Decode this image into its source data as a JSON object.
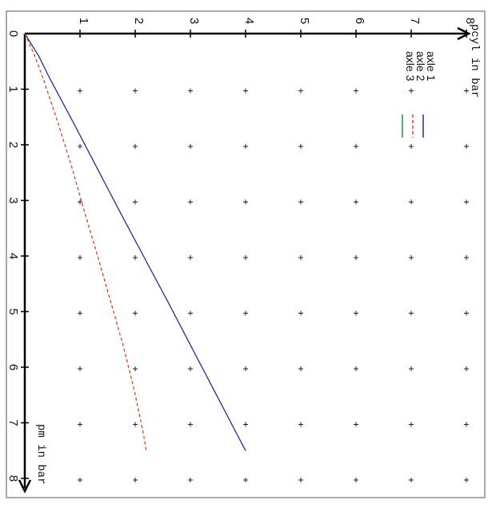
{
  "chart_data": {
    "type": "line",
    "orientation": "rotated-90-clockwise",
    "xlabel": "pm in bar",
    "ylabel": "pcyl in bar",
    "xlim": [
      0,
      8
    ],
    "ylim": [
      0,
      8
    ],
    "x_ticks": [
      "0",
      "1",
      "2",
      "3",
      "4",
      "5",
      "6",
      "7",
      "8"
    ],
    "y_ticks": [
      "1",
      "2",
      "3",
      "4",
      "5",
      "6",
      "7",
      "8"
    ],
    "grid": "plus-markers",
    "legend_position": "top-right",
    "series": [
      {
        "name": "axle 1",
        "color": "#1f2f8f",
        "style": "solid",
        "x": [
          0,
          0.4,
          0.8,
          1.6,
          2.4,
          3.2,
          4.0,
          4.8,
          5.6,
          6.4,
          7.2,
          7.5
        ],
        "y": [
          0,
          0.25,
          0.45,
          0.88,
          1.3,
          1.72,
          2.15,
          2.58,
          3.0,
          3.42,
          3.84,
          4.0
        ]
      },
      {
        "name": "axle 2",
        "color": "#e0401a",
        "style": "dashed",
        "x": [
          0,
          0.4,
          0.8,
          1.6,
          2.4,
          3.2,
          4.0,
          4.8,
          5.6,
          6.4,
          7.2,
          7.5
        ],
        "y": [
          0,
          0.18,
          0.33,
          0.6,
          0.85,
          1.08,
          1.32,
          1.55,
          1.78,
          1.98,
          2.15,
          2.2
        ]
      },
      {
        "name": "axle 3",
        "color": "#2e8b3a",
        "style": "solid",
        "x": [],
        "y": []
      }
    ]
  }
}
